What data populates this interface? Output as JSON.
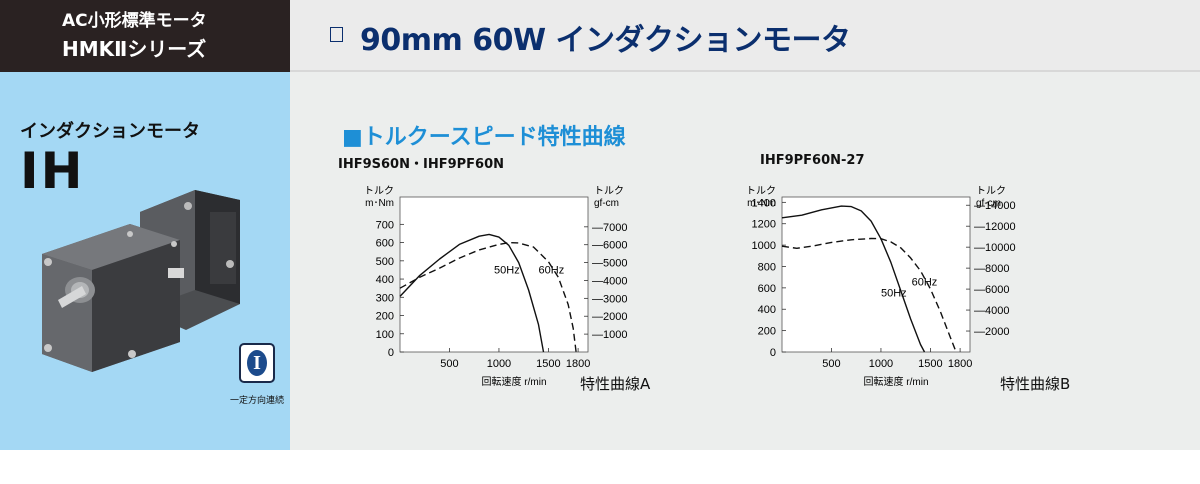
{
  "header": {
    "series_line1": "AC小形標準モータ",
    "series_line2": "HMKⅡシリーズ",
    "title": "90mm 60W インダクションモータ"
  },
  "product": {
    "type_label": "インダクションモータ",
    "code": "IH",
    "icon_letter": "I",
    "icon_caption": "一定方向連続"
  },
  "section": {
    "title": "■トルクースピード特性曲線"
  },
  "colors": {
    "header_dark": "#2a2222",
    "title_blue": "#0b2f6e",
    "section_blue": "#1e8fd6",
    "left_panel": "#a4d8f4",
    "right_panel": "#eceeed"
  },
  "chart_data": [
    {
      "type": "line",
      "model": "IHF9S60N・IHF9PF60N",
      "caption": "特性曲線A",
      "y_left_label_line1": "トルク",
      "y_left_label_line2": "m･Nm",
      "y_right_label_line1": "トルク",
      "y_right_label_line2": "gf-cm",
      "xlabel": "回転速度  r/min",
      "xlim": [
        0,
        1900
      ],
      "ylim": [
        0,
        850
      ],
      "x_ticks": [
        500,
        1000,
        1500,
        1800
      ],
      "y_left_ticks": [
        0,
        100,
        200,
        300,
        400,
        500,
        600,
        700
      ],
      "y_right_ticks": [
        1000,
        2000,
        3000,
        4000,
        5000,
        6000,
        7000
      ],
      "series": [
        {
          "name": "50Hz",
          "style": "solid",
          "x": [
            0,
            200,
            400,
            600,
            800,
            900,
            1000,
            1100,
            1200,
            1300,
            1400,
            1450
          ],
          "y": [
            305,
            420,
            510,
            590,
            635,
            645,
            630,
            585,
            490,
            340,
            150,
            0
          ]
        },
        {
          "name": "60Hz",
          "style": "dashed",
          "x": [
            0,
            200,
            400,
            600,
            800,
            1000,
            1100,
            1200,
            1350,
            1500,
            1600,
            1700,
            1750,
            1780
          ],
          "y": [
            350,
            410,
            460,
            515,
            560,
            590,
            600,
            598,
            575,
            495,
            410,
            260,
            130,
            0
          ]
        }
      ]
    },
    {
      "type": "line",
      "model": "IHF9PF60N-27",
      "caption": "特性曲線B",
      "y_left_label_line1": "トルク",
      "y_left_label_line2": "m･Nm",
      "y_right_label_line1": "トルク",
      "y_right_label_line2": "gf-cm",
      "xlabel": "回転速度  r/min",
      "xlim": [
        0,
        1900
      ],
      "ylim": [
        0,
        1450
      ],
      "x_ticks": [
        500,
        1000,
        1500,
        1800
      ],
      "y_left_ticks": [
        0,
        200,
        400,
        600,
        800,
        1000,
        1200,
        1400
      ],
      "y_right_ticks": [
        2000,
        4000,
        6000,
        8000,
        10000,
        12000,
        14000
      ],
      "series": [
        {
          "name": "50Hz",
          "style": "solid",
          "x": [
            0,
            200,
            400,
            600,
            700,
            800,
            900,
            1000,
            1100,
            1200,
            1300,
            1400,
            1440
          ],
          "y": [
            1255,
            1280,
            1330,
            1365,
            1360,
            1320,
            1225,
            1060,
            840,
            575,
            310,
            70,
            0
          ]
        },
        {
          "name": "60Hz",
          "style": "dashed",
          "x": [
            0,
            150,
            300,
            500,
            700,
            900,
            1000,
            1100,
            1200,
            1300,
            1400,
            1500,
            1600,
            1700,
            1760
          ],
          "y": [
            990,
            970,
            990,
            1025,
            1050,
            1062,
            1060,
            1030,
            975,
            880,
            760,
            590,
            380,
            140,
            0
          ]
        }
      ]
    }
  ]
}
